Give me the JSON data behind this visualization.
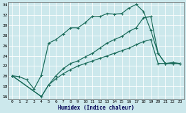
{
  "xlabel": "Humidex (Indice chaleur)",
  "bg_color": "#cce8ec",
  "line_color": "#1a6b5a",
  "grid_color": "#ffffff",
  "xlim": [
    -0.5,
    23.5
  ],
  "ylim": [
    15.5,
    34.5
  ],
  "xticks": [
    0,
    1,
    2,
    3,
    4,
    5,
    6,
    7,
    8,
    9,
    10,
    11,
    12,
    13,
    14,
    15,
    16,
    17,
    18,
    19,
    20,
    21,
    22,
    23
  ],
  "yticks": [
    16,
    18,
    20,
    22,
    24,
    26,
    28,
    30,
    32,
    34
  ],
  "line1_x": [
    0,
    1,
    2,
    3,
    4,
    5,
    6,
    7,
    8,
    9,
    10,
    11,
    12,
    13,
    14,
    15,
    16,
    17,
    18,
    19,
    20,
    21,
    22,
    23
  ],
  "line1_y": [
    20.1,
    19.9,
    19.3,
    17.5,
    20.2,
    26.5,
    27.2,
    28.3,
    29.5,
    29.5,
    30.5,
    31.8,
    31.7,
    32.3,
    32.2,
    32.3,
    33.4,
    34.1,
    32.7,
    29.0,
    24.5,
    22.5,
    22.7,
    22.5
  ],
  "line2_x": [
    0,
    4,
    5,
    6,
    7,
    8,
    9,
    10,
    11,
    12,
    13,
    14,
    15,
    16,
    17,
    18,
    19,
    20,
    21,
    22,
    23
  ],
  "line2_y": [
    20.1,
    16.0,
    18.3,
    20.1,
    21.5,
    22.5,
    23.0,
    23.8,
    24.5,
    25.5,
    26.5,
    27.2,
    27.8,
    28.8,
    29.5,
    31.5,
    31.7,
    24.5,
    22.5,
    22.5,
    22.5
  ],
  "line3_x": [
    0,
    4,
    5,
    6,
    7,
    8,
    9,
    10,
    11,
    12,
    13,
    14,
    15,
    16,
    17,
    18,
    19,
    20,
    21,
    22,
    23
  ],
  "line3_y": [
    20.1,
    16.0,
    18.3,
    19.5,
    20.5,
    21.3,
    22.0,
    22.5,
    23.0,
    23.5,
    24.0,
    24.5,
    25.0,
    25.5,
    26.2,
    26.8,
    27.2,
    22.5,
    22.5,
    22.5,
    22.5
  ]
}
